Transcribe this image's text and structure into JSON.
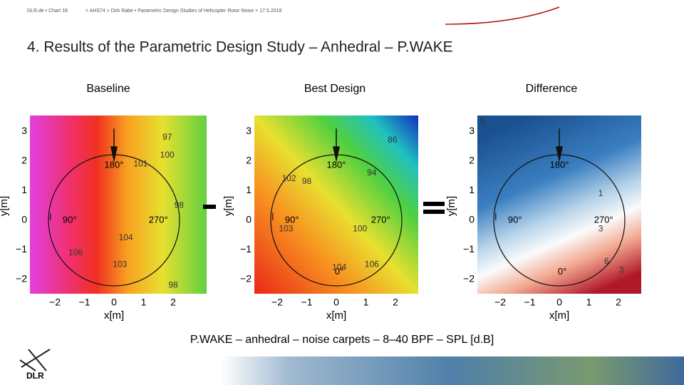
{
  "header": {
    "left": "DLR.de • Chart 18",
    "right": "> AHS74 > Dirk Rabe • Parametric Design Studies of Helicopter Rotor Noise > 17.5.2018"
  },
  "title": "4. Results of the Parametric Design Study – Anhedral – P.WAKE",
  "panels": [
    {
      "label": "Baseline",
      "xlabel": "x[m]",
      "ylabel": "y[m]",
      "xticks": [
        "−2",
        "−1",
        "0",
        "1",
        "2"
      ],
      "yticks": [
        "−2",
        "−1",
        "0",
        "1",
        "2",
        "3"
      ],
      "azimuths": [
        "180°",
        "90°",
        "270°"
      ],
      "contour_labels": [
        "97",
        "100",
        "101",
        "98",
        "104",
        "106",
        "103",
        "98"
      ]
    },
    {
      "label": "Best Design",
      "xlabel": "x[m]",
      "ylabel": "y[m]",
      "xticks": [
        "−2",
        "−1",
        "0",
        "1",
        "2"
      ],
      "yticks": [
        "−2",
        "−1",
        "0",
        "1",
        "2",
        "3"
      ],
      "azimuths": [
        "180°",
        "90°",
        "270°",
        "0°"
      ],
      "contour_labels": [
        "86",
        "98",
        "102",
        "103",
        "100",
        "104",
        "106",
        "94"
      ]
    },
    {
      "label": "Difference",
      "xlabel": "x[m]",
      "ylabel": "y[m]",
      "xticks": [
        "−2",
        "−1",
        "0",
        "1",
        "2"
      ],
      "yticks": [
        "−2",
        "−1",
        "0",
        "1",
        "2",
        "3"
      ],
      "azimuths": [
        "180°",
        "90°",
        "270°",
        "0°"
      ],
      "contour_labels": [
        "5",
        "3",
        "3",
        "6",
        "1"
      ]
    }
  ],
  "caption": "P.WAKE – anhedral – noise carpets – 8–40 BPF – SPL [d.B]",
  "logo": "DLR"
}
